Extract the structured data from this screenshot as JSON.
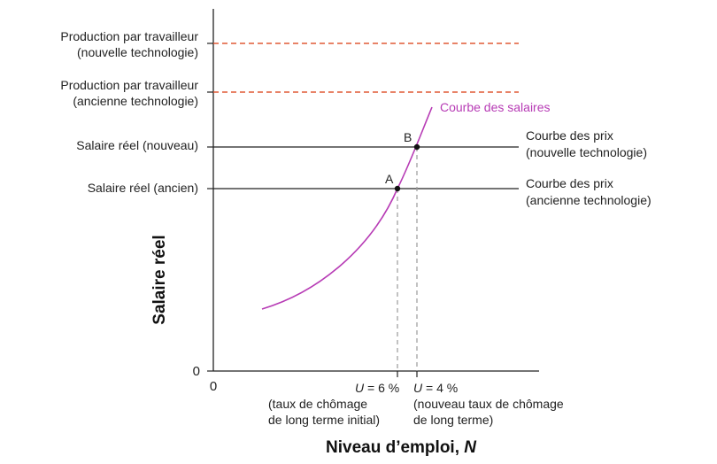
{
  "diagram": {
    "axes": {
      "x_title": "Niveau d’emploi, ",
      "x_title_italic": "N",
      "y_title": "Salaire réel",
      "x_origin": "0",
      "y_origin": "0"
    },
    "left_labels": {
      "prod_new_line1": "Production par travailleur",
      "prod_new_line2": "(nouvelle technologie)",
      "prod_old_line1": "Production par travailleur",
      "prod_old_line2": "(ancienne technologie)",
      "wage_new": "Salaire réel (nouveau)",
      "wage_old": "Salaire réel (ancien)"
    },
    "right_labels": {
      "price_new_line1": "Courbe des prix",
      "price_new_line2": "(nouvelle technologie)",
      "price_old_line1": "Courbe des prix",
      "price_old_line2": "(ancienne technologie)",
      "wage_curve": "Courbe des salaires"
    },
    "points": {
      "a": "A",
      "b": "B"
    },
    "bottom_labels": {
      "u6_prefix": "U",
      "u6_value": " = 6 %",
      "u6_line2": "(taux de chômage",
      "u6_line3": "de long terme initial)",
      "u4_prefix": "U",
      "u4_value": " = 4 %",
      "u4_line2": "(nouveau taux de chômage",
      "u4_line3": "de long terme)"
    },
    "colors": {
      "production_line": "#e05a36",
      "wage_curve": "#b73bb5",
      "price_line": "#222222",
      "dashed_drop": "#999999"
    }
  }
}
